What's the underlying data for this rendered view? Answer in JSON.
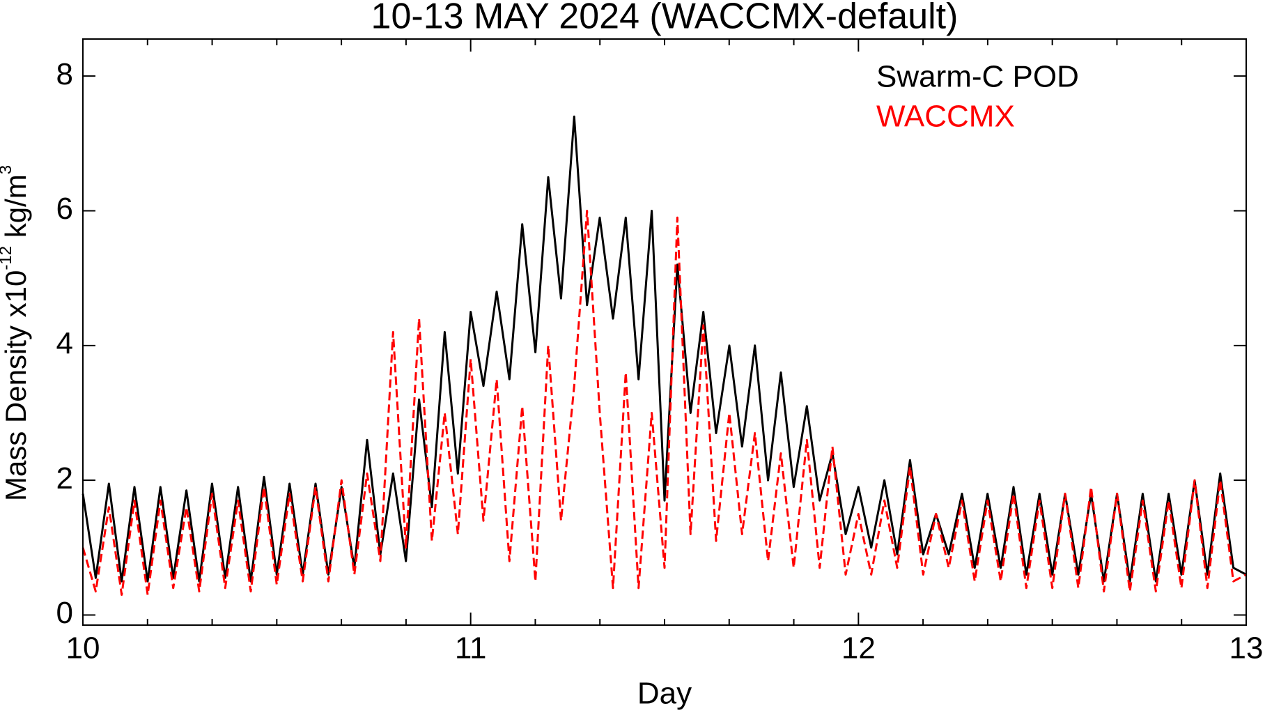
{
  "chart_data": {
    "type": "line",
    "title": "10-13 MAY 2024 (WACCMX-default)",
    "xlabel": "Day",
    "ylabel": [
      "Mass Density x10",
      "-12",
      " kg/m",
      "3"
    ],
    "legend_position": "upper right",
    "x": [
      10,
      10.033,
      10.067,
      10.1,
      10.133,
      10.167,
      10.2,
      10.233,
      10.267,
      10.3,
      10.333,
      10.367,
      10.4,
      10.433,
      10.467,
      10.5,
      10.533,
      10.567,
      10.6,
      10.633,
      10.667,
      10.7,
      10.733,
      10.767,
      10.8,
      10.833,
      10.867,
      10.9,
      10.933,
      10.967,
      11,
      11.033,
      11.067,
      11.1,
      11.133,
      11.167,
      11.2,
      11.233,
      11.267,
      11.3,
      11.333,
      11.367,
      11.4,
      11.433,
      11.467,
      11.5,
      11.533,
      11.567,
      11.6,
      11.633,
      11.667,
      11.7,
      11.733,
      11.767,
      11.8,
      11.833,
      11.867,
      11.9,
      11.933,
      11.967,
      12,
      12.033,
      12.067,
      12.1,
      12.133,
      12.167,
      12.2,
      12.233,
      12.267,
      12.3,
      12.333,
      12.367,
      12.4,
      12.433,
      12.467,
      12.5,
      12.533,
      12.567,
      12.6,
      12.633,
      12.667,
      12.7,
      12.733,
      12.767,
      12.8,
      12.833,
      12.867,
      12.9,
      12.933,
      12.967,
      13
    ],
    "series": [
      {
        "name": "Swarm-C POD",
        "color": "#000000",
        "dash": false,
        "values": [
          1.8,
          0.55,
          1.95,
          0.5,
          1.9,
          0.5,
          1.9,
          0.55,
          1.85,
          0.5,
          1.95,
          0.55,
          1.9,
          0.5,
          2.05,
          0.6,
          1.95,
          0.6,
          1.95,
          0.6,
          1.9,
          0.7,
          2.6,
          0.9,
          2.1,
          0.8,
          3.2,
          1.6,
          4.2,
          2.1,
          4.5,
          3.4,
          4.8,
          3.5,
          5.8,
          3.9,
          6.5,
          4.7,
          7.4,
          4.6,
          5.9,
          4.4,
          5.9,
          3.5,
          6.0,
          1.7,
          5.2,
          3.0,
          4.5,
          2.7,
          4.0,
          2.5,
          4.0,
          2.0,
          3.6,
          1.9,
          3.1,
          1.7,
          2.4,
          1.2,
          1.9,
          1.0,
          2.0,
          0.9,
          2.3,
          0.9,
          1.5,
          0.9,
          1.8,
          0.7,
          1.8,
          0.7,
          1.9,
          0.6,
          1.8,
          0.6,
          1.8,
          0.6,
          1.8,
          0.5,
          1.8,
          0.5,
          1.8,
          0.5,
          1.8,
          0.6,
          2.0,
          0.6,
          2.1,
          0.7,
          0.6
        ]
      },
      {
        "name": "WACCMX",
        "color": "#ff0000",
        "dash": true,
        "values": [
          1.0,
          0.35,
          1.6,
          0.3,
          1.7,
          0.3,
          1.7,
          0.4,
          1.6,
          0.35,
          1.8,
          0.4,
          1.7,
          0.35,
          1.9,
          0.45,
          1.8,
          0.5,
          1.9,
          0.5,
          2.0,
          0.6,
          2.1,
          0.8,
          4.2,
          1.0,
          4.4,
          1.1,
          3.0,
          1.2,
          3.8,
          1.4,
          3.5,
          0.8,
          3.1,
          0.5,
          4.0,
          1.4,
          3.4,
          6.0,
          3.0,
          0.4,
          3.6,
          0.4,
          3.0,
          0.7,
          5.9,
          1.2,
          4.3,
          1.1,
          3.0,
          1.2,
          2.7,
          0.8,
          2.4,
          0.7,
          2.6,
          0.7,
          2.5,
          0.6,
          1.5,
          0.6,
          1.7,
          0.7,
          2.2,
          0.6,
          1.5,
          0.7,
          1.7,
          0.5,
          1.7,
          0.5,
          1.8,
          0.4,
          1.7,
          0.4,
          1.8,
          0.4,
          1.9,
          0.35,
          1.8,
          0.35,
          1.7,
          0.35,
          1.7,
          0.4,
          2.0,
          0.4,
          2.0,
          0.5,
          0.6
        ]
      }
    ],
    "xlim": [
      10,
      13
    ],
    "xticks": [
      10,
      11,
      12,
      13
    ],
    "ylim": [
      -0.15,
      8.55
    ],
    "yticks": [
      0,
      2,
      4,
      6,
      8
    ]
  }
}
